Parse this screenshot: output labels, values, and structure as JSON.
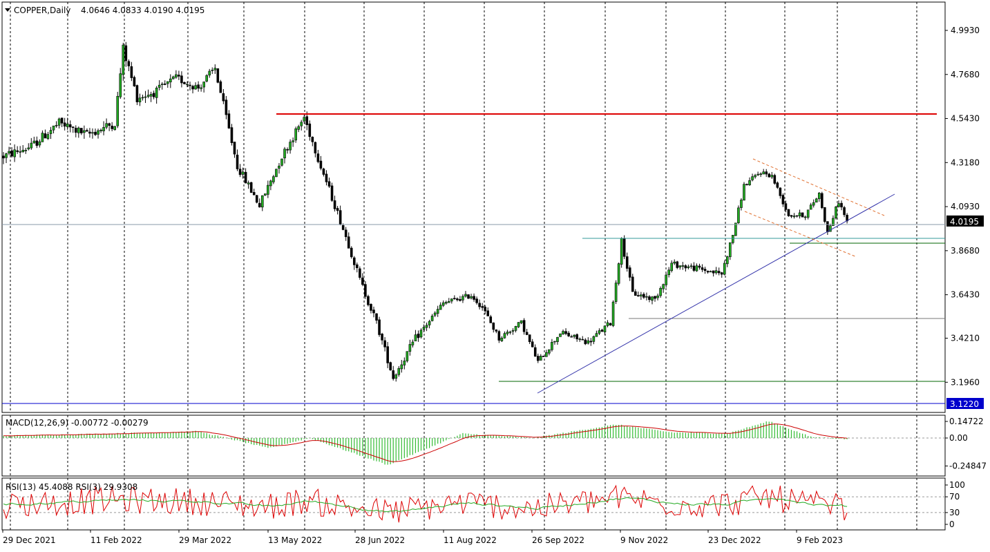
{
  "header": {
    "symbol": "COPPER,Daily",
    "ohlc": "4.0646 4.0833 4.0190 4.0195"
  },
  "macd_panel": {
    "title": "MACD(12,26,9) -0.00772 -0.00279",
    "ticks": [
      "0.14722",
      "0.00",
      "-0.24847"
    ]
  },
  "rsi_panel": {
    "title": "RSI(13) 45.4088  RSI(3) 29.9308",
    "ticks": [
      "100",
      "70",
      "30",
      "0"
    ]
  },
  "colors": {
    "bull": "#22aa22",
    "bear": "#000000",
    "resistance": "#dd0000",
    "support_green": "#006600",
    "trend_blue": "#3333aa",
    "channel_orange": "#e07030",
    "current_price_tag": "#000000",
    "low_tag": "#0000cc",
    "macd_hist": "#33bb33",
    "macd_signal": "#cc0000",
    "rsi13": "#22aa22",
    "rsi3": "#dd0000"
  },
  "chart_data": [
    {
      "type": "candlestick",
      "title": "COPPER,Daily",
      "y_ticks": [
        "4.9930",
        "4.7680",
        "4.5430",
        "4.3180",
        "4.0930",
        "3.8680",
        "3.6430",
        "3.4210",
        "3.1960"
      ],
      "ylim": [
        3.12,
        5.06
      ],
      "x_ticks": [
        "29 Dec 2021",
        "11 Feb 2022",
        "29 Mar 2022",
        "13 May 2022",
        "28 Jun 2022",
        "11 Aug 2022",
        "26 Sep 2022",
        "9 Nov 2022",
        "23 Dec 2022",
        "9 Feb 2023"
      ],
      "current_price": "4.0195",
      "low_marker": "3.1220",
      "anchors": [
        [
          0,
          4.35
        ],
        [
          10,
          4.4
        ],
        [
          20,
          4.52
        ],
        [
          30,
          4.46
        ],
        [
          40,
          4.52
        ],
        [
          43,
          4.9
        ],
        [
          48,
          4.65
        ],
        [
          55,
          4.68
        ],
        [
          62,
          4.75
        ],
        [
          70,
          4.7
        ],
        [
          76,
          4.8
        ],
        [
          84,
          4.3
        ],
        [
          92,
          4.1
        ],
        [
          100,
          4.35
        ],
        [
          108,
          4.55
        ],
        [
          114,
          4.3
        ],
        [
          124,
          3.9
        ],
        [
          128,
          3.72
        ],
        [
          134,
          3.5
        ],
        [
          140,
          3.22
        ],
        [
          148,
          3.42
        ],
        [
          158,
          3.6
        ],
        [
          168,
          3.64
        ],
        [
          172,
          3.58
        ],
        [
          178,
          3.42
        ],
        [
          186,
          3.5
        ],
        [
          192,
          3.3
        ],
        [
          200,
          3.45
        ],
        [
          210,
          3.4
        ],
        [
          218,
          3.5
        ],
        [
          222,
          3.92
        ],
        [
          226,
          3.65
        ],
        [
          234,
          3.62
        ],
        [
          240,
          3.8
        ],
        [
          248,
          3.78
        ],
        [
          258,
          3.75
        ],
        [
          262,
          3.95
        ],
        [
          266,
          4.2
        ],
        [
          272,
          4.27
        ],
        [
          276,
          4.25
        ],
        [
          282,
          4.05
        ],
        [
          288,
          4.05
        ],
        [
          293,
          4.16
        ],
        [
          296,
          3.96
        ],
        [
          300,
          4.12
        ],
        [
          303,
          4.02
        ]
      ],
      "ranges": [
        [
          0,
          28,
          3.9
        ],
        [
          29,
          60,
          4.0
        ],
        [
          61,
          90,
          3.5
        ],
        [
          91,
          110,
          3.6
        ],
        [
          111,
          150,
          3.3
        ],
        [
          151,
          210,
          2.4
        ],
        [
          211,
          260,
          2.6
        ],
        [
          261,
          303,
          2.1
        ]
      ]
    },
    {
      "type": "macd",
      "anchors": [
        [
          0,
          0.02
        ],
        [
          40,
          0.04
        ],
        [
          70,
          0.06
        ],
        [
          95,
          -0.09
        ],
        [
          110,
          0.0
        ],
        [
          138,
          -0.24
        ],
        [
          165,
          0.04
        ],
        [
          190,
          0.0
        ],
        [
          220,
          0.12
        ],
        [
          240,
          0.05
        ],
        [
          260,
          0.04
        ],
        [
          275,
          0.15
        ],
        [
          290,
          0.01
        ],
        [
          303,
          -0.01
        ]
      ]
    },
    {
      "type": "rsi",
      "anchors": [
        [
          0,
          50
        ],
        [
          40,
          62
        ],
        [
          70,
          58
        ],
        [
          95,
          45
        ],
        [
          108,
          60
        ],
        [
          138,
          30
        ],
        [
          165,
          55
        ],
        [
          190,
          40
        ],
        [
          222,
          68
        ],
        [
          240,
          52
        ],
        [
          258,
          50
        ],
        [
          275,
          70
        ],
        [
          290,
          50
        ],
        [
          303,
          45
        ]
      ],
      "last": [
        45.4088,
        29.9308
      ]
    }
  ]
}
